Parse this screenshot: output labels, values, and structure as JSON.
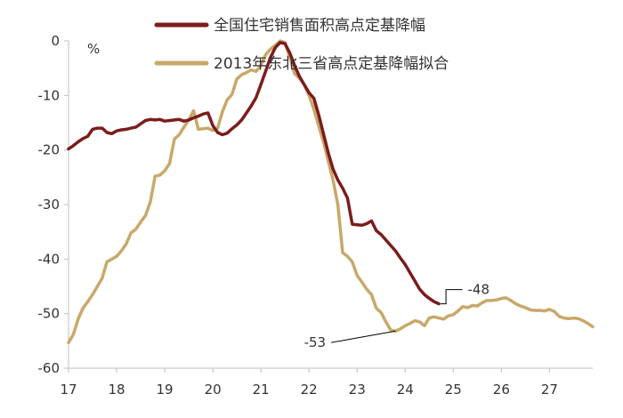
{
  "chart_data": {
    "type": "line",
    "title": "",
    "xlabel": "",
    "ylabel": "",
    "y_unit": "%",
    "xlim": [
      17,
      27.9
    ],
    "ylim": [
      -60,
      0
    ],
    "x_ticks": [
      17,
      18,
      19,
      20,
      21,
      22,
      23,
      24,
      25,
      26,
      27
    ],
    "x_tick_labels": [
      "17",
      "18",
      "19",
      "20",
      "21",
      "22",
      "23",
      "24",
      "25",
      "26",
      "27"
    ],
    "y_ticks": [
      0,
      -10,
      -20,
      -30,
      -40,
      -50,
      -60
    ],
    "y_tick_labels": [
      "0",
      "-10",
      "-20",
      "-30",
      "-40",
      "-50",
      "-60"
    ],
    "grid": false,
    "legend_position": "top",
    "series": [
      {
        "name": "全国住宅销售面积高点定基降幅",
        "color": "#7b1c1c",
        "points": [
          [
            17.0,
            -19.8
          ],
          [
            17.1,
            -19.2
          ],
          [
            17.2,
            -18.5
          ],
          [
            17.3,
            -17.9
          ],
          [
            17.4,
            -17.5
          ],
          [
            17.5,
            -16.2
          ],
          [
            17.6,
            -16.0
          ],
          [
            17.7,
            -16.0
          ],
          [
            17.8,
            -16.8
          ],
          [
            17.9,
            -17.0
          ],
          [
            18.0,
            -16.5
          ],
          [
            18.1,
            -16.3
          ],
          [
            18.2,
            -16.2
          ],
          [
            18.3,
            -16.0
          ],
          [
            18.4,
            -15.8
          ],
          [
            18.5,
            -15.2
          ],
          [
            18.6,
            -14.6
          ],
          [
            18.7,
            -14.4
          ],
          [
            18.8,
            -14.5
          ],
          [
            18.9,
            -14.4
          ],
          [
            19.0,
            -14.7
          ],
          [
            19.1,
            -14.6
          ],
          [
            19.2,
            -14.5
          ],
          [
            19.3,
            -14.4
          ],
          [
            19.4,
            -14.7
          ],
          [
            19.5,
            -14.5
          ],
          [
            19.6,
            -14.1
          ],
          [
            19.7,
            -13.8
          ],
          [
            19.8,
            -13.4
          ],
          [
            19.9,
            -13.2
          ],
          [
            20.0,
            -15.5
          ],
          [
            20.1,
            -16.8
          ],
          [
            20.2,
            -17.2
          ],
          [
            20.3,
            -16.9
          ],
          [
            20.4,
            -16.1
          ],
          [
            20.5,
            -15.4
          ],
          [
            20.6,
            -14.5
          ],
          [
            20.7,
            -13.2
          ],
          [
            20.8,
            -11.9
          ],
          [
            20.9,
            -10.4
          ],
          [
            21.0,
            -8.0
          ],
          [
            21.1,
            -5.5
          ],
          [
            21.2,
            -3.0
          ],
          [
            21.3,
            -1.2
          ],
          [
            21.4,
            -0.3
          ],
          [
            21.5,
            -0.5
          ],
          [
            21.6,
            -2.2
          ],
          [
            21.7,
            -4.5
          ],
          [
            21.8,
            -6.5
          ],
          [
            21.9,
            -8.0
          ],
          [
            22.0,
            -9.5
          ],
          [
            22.1,
            -10.5
          ],
          [
            22.2,
            -13.5
          ],
          [
            22.3,
            -17.0
          ],
          [
            22.4,
            -20.5
          ],
          [
            22.5,
            -23.5
          ],
          [
            22.6,
            -25.5
          ],
          [
            22.7,
            -27.0
          ],
          [
            22.8,
            -28.8
          ],
          [
            22.9,
            -33.6
          ],
          [
            23.0,
            -33.7
          ],
          [
            23.1,
            -33.8
          ],
          [
            23.2,
            -33.5
          ],
          [
            23.3,
            -33.0
          ],
          [
            23.4,
            -34.8
          ],
          [
            23.5,
            -35.5
          ],
          [
            23.6,
            -36.5
          ],
          [
            23.7,
            -37.5
          ],
          [
            23.8,
            -38.5
          ],
          [
            23.9,
            -39.8
          ],
          [
            24.0,
            -41.0
          ],
          [
            24.1,
            -42.5
          ],
          [
            24.2,
            -44.0
          ],
          [
            24.3,
            -45.5
          ],
          [
            24.4,
            -46.5
          ],
          [
            24.5,
            -47.2
          ],
          [
            24.6,
            -47.8
          ],
          [
            24.7,
            -48.2
          ]
        ]
      },
      {
        "name": "2013年东北三省高点定基降幅拟合",
        "color": "#c8a86a",
        "points": [
          [
            17.0,
            -55.3
          ],
          [
            17.1,
            -53.8
          ],
          [
            17.2,
            -51.0
          ],
          [
            17.3,
            -49.0
          ],
          [
            17.4,
            -47.8
          ],
          [
            17.5,
            -46.5
          ],
          [
            17.6,
            -45.0
          ],
          [
            17.7,
            -43.5
          ],
          [
            17.8,
            -40.5
          ],
          [
            17.9,
            -40.0
          ],
          [
            18.0,
            -39.5
          ],
          [
            18.1,
            -38.5
          ],
          [
            18.2,
            -37.2
          ],
          [
            18.3,
            -35.2
          ],
          [
            18.4,
            -34.5
          ],
          [
            18.5,
            -33.2
          ],
          [
            18.6,
            -32.0
          ],
          [
            18.7,
            -29.5
          ],
          [
            18.8,
            -24.8
          ],
          [
            18.9,
            -24.6
          ],
          [
            19.0,
            -23.8
          ],
          [
            19.1,
            -22.5
          ],
          [
            19.2,
            -18.0
          ],
          [
            19.3,
            -17.2
          ],
          [
            19.4,
            -15.8
          ],
          [
            19.5,
            -14.5
          ],
          [
            19.6,
            -12.8
          ],
          [
            19.7,
            -16.2
          ],
          [
            19.8,
            -16.1
          ],
          [
            19.9,
            -16.0
          ],
          [
            20.0,
            -16.4
          ],
          [
            20.1,
            -16.0
          ],
          [
            20.2,
            -13.0
          ],
          [
            20.3,
            -10.8
          ],
          [
            20.4,
            -9.8
          ],
          [
            20.5,
            -7.0
          ],
          [
            20.6,
            -6.2
          ],
          [
            20.7,
            -5.8
          ],
          [
            20.8,
            -5.3
          ],
          [
            20.9,
            -5.6
          ],
          [
            21.0,
            -4.5
          ],
          [
            21.1,
            -2.5
          ],
          [
            21.2,
            -1.5
          ],
          [
            21.3,
            -0.8
          ],
          [
            21.4,
            0.0
          ],
          [
            21.5,
            -0.3
          ],
          [
            21.6,
            -3.0
          ],
          [
            21.7,
            -6.0
          ],
          [
            21.8,
            -6.8
          ],
          [
            21.9,
            -8.0
          ],
          [
            22.0,
            -10.0
          ],
          [
            22.1,
            -12.5
          ],
          [
            22.2,
            -15.5
          ],
          [
            22.3,
            -18.5
          ],
          [
            22.4,
            -22.0
          ],
          [
            22.5,
            -25.5
          ],
          [
            22.6,
            -30.0
          ],
          [
            22.7,
            -38.8
          ],
          [
            22.8,
            -39.5
          ],
          [
            22.9,
            -40.5
          ],
          [
            23.0,
            -43.0
          ],
          [
            23.1,
            -44.2
          ],
          [
            23.2,
            -45.5
          ],
          [
            23.3,
            -46.5
          ],
          [
            23.4,
            -49.0
          ],
          [
            23.5,
            -49.8
          ],
          [
            23.6,
            -51.5
          ],
          [
            23.7,
            -53.0
          ],
          [
            23.8,
            -53.2
          ],
          [
            23.9,
            -52.8
          ],
          [
            24.0,
            -52.2
          ],
          [
            24.1,
            -51.8
          ],
          [
            24.2,
            -51.3
          ],
          [
            24.3,
            -51.5
          ],
          [
            24.4,
            -52.2
          ],
          [
            24.5,
            -50.8
          ],
          [
            24.6,
            -50.6
          ],
          [
            24.7,
            -50.8
          ],
          [
            24.8,
            -51.0
          ],
          [
            24.9,
            -50.4
          ],
          [
            25.0,
            -50.2
          ],
          [
            25.1,
            -49.5
          ],
          [
            25.2,
            -48.7
          ],
          [
            25.3,
            -48.9
          ],
          [
            25.4,
            -48.5
          ],
          [
            25.5,
            -48.6
          ],
          [
            25.6,
            -48.0
          ],
          [
            25.7,
            -47.6
          ],
          [
            25.8,
            -47.6
          ],
          [
            25.9,
            -47.5
          ],
          [
            26.0,
            -47.2
          ],
          [
            26.1,
            -47.1
          ],
          [
            26.2,
            -47.6
          ],
          [
            26.3,
            -48.2
          ],
          [
            26.4,
            -48.6
          ],
          [
            26.5,
            -48.9
          ],
          [
            26.6,
            -49.3
          ],
          [
            26.7,
            -49.4
          ],
          [
            26.8,
            -49.4
          ],
          [
            26.9,
            -49.5
          ],
          [
            27.0,
            -49.2
          ],
          [
            27.1,
            -49.6
          ],
          [
            27.2,
            -50.5
          ],
          [
            27.3,
            -50.8
          ],
          [
            27.4,
            -50.9
          ],
          [
            27.5,
            -50.8
          ],
          [
            27.6,
            -50.9
          ],
          [
            27.7,
            -51.3
          ],
          [
            27.8,
            -51.8
          ],
          [
            27.9,
            -52.4
          ]
        ]
      }
    ],
    "annotations": [
      {
        "text": "-48",
        "x": 24.7,
        "y": -48.2,
        "label_x": 25.3,
        "label_y": -45.6,
        "label_anchor": "start"
      },
      {
        "text": "-53",
        "x": 23.8,
        "y": -53.2,
        "label_x": 22.35,
        "label_y": -55.3,
        "label_anchor": "end"
      }
    ]
  }
}
